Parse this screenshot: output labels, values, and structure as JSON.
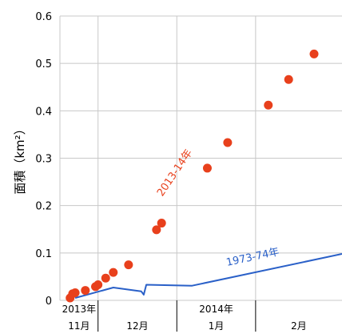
{
  "chart_data": {
    "type": "scatter",
    "ylabel": "面積（km²）",
    "ylim": [
      0,
      0.6
    ],
    "yticks": [
      "0",
      "0.1",
      "0.2",
      "0.3",
      "0.4",
      "0.5",
      "0.6"
    ],
    "grid": true,
    "x_categories": [
      {
        "year": "2013年",
        "month": "11月"
      },
      {
        "year": "",
        "month": "12月"
      },
      {
        "year": "2014年",
        "month": "1月"
      },
      {
        "year": "",
        "month": "2月"
      }
    ],
    "series": [
      {
        "name": "2013-14年",
        "color": "#e8401c",
        "marker": "circle",
        "points": [
          {
            "x": "2013-11-20",
            "y": 0.005
          },
          {
            "x": "2013-11-21",
            "y": 0.014
          },
          {
            "x": "2013-11-22",
            "y": 0.016
          },
          {
            "x": "2013-11-26",
            "y": 0.021
          },
          {
            "x": "2013-11-30",
            "y": 0.029
          },
          {
            "x": "2013-12-01",
            "y": 0.033
          },
          {
            "x": "2013-12-04",
            "y": 0.047
          },
          {
            "x": "2013-12-07",
            "y": 0.059
          },
          {
            "x": "2013-12-13",
            "y": 0.075
          },
          {
            "x": "2013-12-24",
            "y": 0.149
          },
          {
            "x": "2013-12-26",
            "y": 0.163
          },
          {
            "x": "2014-01-13",
            "y": 0.279
          },
          {
            "x": "2014-01-21",
            "y": 0.333
          },
          {
            "x": "2014-02-06",
            "y": 0.412
          },
          {
            "x": "2014-02-14",
            "y": 0.466
          },
          {
            "x": "2014-02-24",
            "y": 0.52
          }
        ]
      },
      {
        "name": "1973-74年",
        "color": "#2a60c8",
        "marker": "line",
        "points": [
          {
            "x": "2013-11-22",
            "y": 0.005
          },
          {
            "x": "2013-12-07",
            "y": 0.027
          },
          {
            "x": "2013-12-18",
            "y": 0.019
          },
          {
            "x": "2013-12-19",
            "y": 0.012
          },
          {
            "x": "2013-12-20",
            "y": 0.033
          },
          {
            "x": "2014-01-07",
            "y": 0.031
          },
          {
            "x": "2014-03-07",
            "y": 0.098
          }
        ]
      }
    ]
  }
}
